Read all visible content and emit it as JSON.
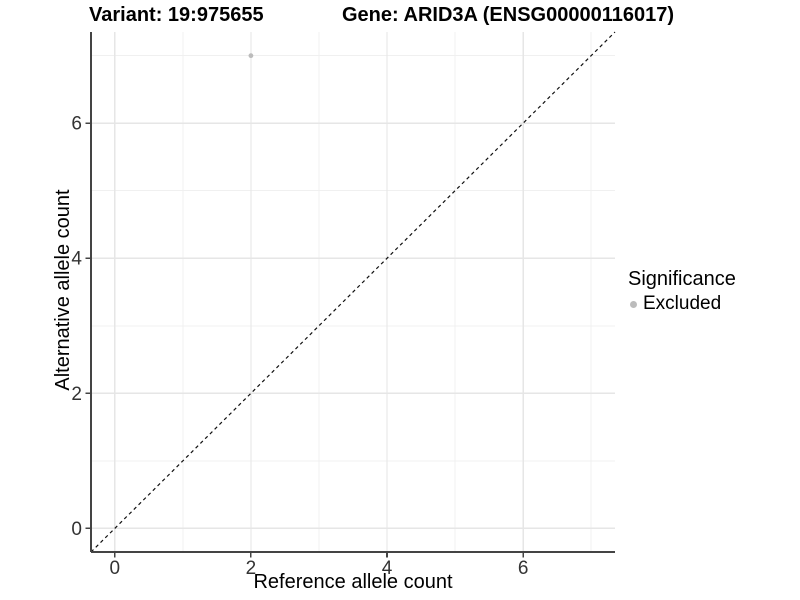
{
  "titles": {
    "variant": "Variant: 19:975655",
    "gene": "Gene: ARID3A (ENSG00000116017)"
  },
  "legend": {
    "title": "Significance",
    "items": [
      {
        "label": "Excluded",
        "color": "#bcbcbc"
      }
    ]
  },
  "chart_data": {
    "type": "scatter",
    "title_left": "Variant: 19:975655",
    "title_right": "Gene: ARID3A (ENSG00000116017)",
    "xlabel": "Reference allele count",
    "ylabel": "Alternative allele count",
    "xlim": [
      -0.35,
      7.35
    ],
    "ylim": [
      -0.35,
      7.35
    ],
    "x_ticks": [
      0,
      2,
      4,
      6
    ],
    "y_ticks": [
      0,
      2,
      4,
      6
    ],
    "x_minor_gridlines": [
      1,
      3,
      5,
      7
    ],
    "y_minor_gridlines": [
      1,
      3,
      5,
      7
    ],
    "grid": "on",
    "legend_position": "right",
    "series": [
      {
        "name": "Excluded",
        "color": "#bcbcbc",
        "points": [
          {
            "x": 2,
            "y": 7
          }
        ]
      }
    ],
    "reference_line": {
      "kind": "identity",
      "slope": 1,
      "intercept": 0,
      "line_style": "dashed",
      "color": "#111111"
    },
    "style": {
      "grid_major_color": "#e6e6e6",
      "grid_minor_color": "#f0f0f0",
      "axis_line_color": "#444444",
      "tick_color": "#444444",
      "tick_label_color": "#333333",
      "tick_label_size": 19,
      "point_radius": 2.4
    }
  }
}
